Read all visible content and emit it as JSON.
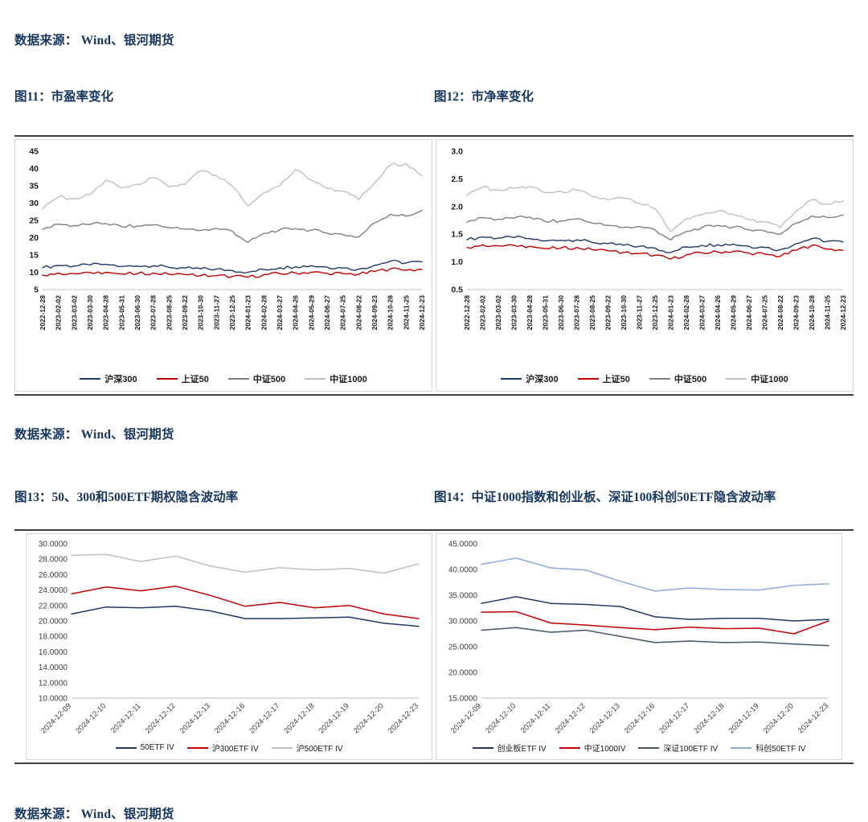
{
  "page": {
    "background": "#ffffff",
    "text_color": "#17365D"
  },
  "sources": [
    "数据来源： Wind、银河期货",
    "数据来源： Wind、银河期货",
    "数据来源： Wind、银河期货"
  ],
  "figures": [
    {
      "title": "图11：市盈率变化"
    },
    {
      "title": "图12：市净率变化"
    },
    {
      "title": "图13：50、300和500ETF期权隐含波动率"
    },
    {
      "title": "图14：中证1000指数和创业板、深证100科创50ETF隐含波动率"
    }
  ],
  "chart_data": [
    {
      "type": "line",
      "title": "图11：市盈率变化",
      "xlabel": "",
      "ylabel": "",
      "grid": false,
      "legend_position": "bottom",
      "ylim": [
        5,
        45
      ],
      "yticks": [
        "5",
        "10",
        "15",
        "20",
        "25",
        "30",
        "35",
        "40",
        "45"
      ],
      "categories": [
        "2022-12-28",
        "2023-02-02",
        "2023-03-02",
        "2023-03-30",
        "2023-04-28",
        "2023-05-31",
        "2023-06-30",
        "2023-07-28",
        "2023-08-25",
        "2023-09-22",
        "2023-10-30",
        "2023-11-27",
        "2023-12-25",
        "2024-01-23",
        "2024-02-28",
        "2024-03-27",
        "2024-04-26",
        "2024-05-29",
        "2024-06-27",
        "2024-07-25",
        "2024-08-22",
        "2024-09-23",
        "2024-10-28",
        "2024-11-25",
        "2024-12-23"
      ],
      "series": [
        {
          "name": "沪深300",
          "color": "#1F3864",
          "values": [
            11.3,
            12.0,
            11.8,
            12.1,
            12.3,
            11.7,
            11.8,
            11.9,
            11.4,
            11.2,
            11.0,
            10.9,
            10.5,
            10.0,
            10.8,
            11.3,
            11.6,
            11.9,
            11.5,
            11.2,
            10.9,
            12.0,
            13.2,
            12.7,
            13.0
          ]
        },
        {
          "name": "上证50",
          "color": "#C00000",
          "values": [
            9.2,
            9.8,
            9.6,
            9.9,
            10.0,
            9.5,
            9.6,
            9.8,
            9.4,
            9.3,
            9.1,
            9.0,
            8.8,
            8.6,
            9.3,
            9.6,
            9.8,
            10.0,
            9.7,
            9.6,
            9.4,
            10.2,
            11.0,
            10.6,
            10.8
          ]
        },
        {
          "name": "中证500",
          "color": "#7F7F7F",
          "values": [
            22.4,
            23.9,
            23.5,
            23.8,
            24.1,
            23.2,
            23.4,
            23.7,
            22.9,
            22.5,
            22.1,
            22.7,
            21.9,
            18.6,
            21.2,
            22.3,
            22.6,
            22.2,
            21.3,
            20.9,
            20.2,
            24.3,
            26.8,
            26.2,
            27.9
          ]
        },
        {
          "name": "中证1000",
          "color": "#BFBFBF",
          "values": [
            28.3,
            31.8,
            31.3,
            32.4,
            36.6,
            34.4,
            35.4,
            37.4,
            34.7,
            35.4,
            39.4,
            37.9,
            34.9,
            29.2,
            33.0,
            35.0,
            39.7,
            36.7,
            34.2,
            33.4,
            31.0,
            35.8,
            41.0,
            41.4,
            38.0
          ]
        }
      ]
    },
    {
      "type": "line",
      "title": "图12：市净率变化",
      "xlabel": "",
      "ylabel": "",
      "grid": false,
      "legend_position": "bottom",
      "ylim": [
        0.5,
        3.0
      ],
      "yticks": [
        "0.5",
        "1.0",
        "1.5",
        "2.0",
        "2.5",
        "3.0"
      ],
      "categories": [
        "2022-12-28",
        "2023-02-02",
        "2023-03-02",
        "2023-03-30",
        "2023-04-28",
        "2023-05-31",
        "2023-06-30",
        "2023-07-28",
        "2023-08-25",
        "2023-09-22",
        "2023-10-30",
        "2023-11-27",
        "2023-12-25",
        "2024-01-23",
        "2024-02-28",
        "2024-03-27",
        "2024-04-26",
        "2024-05-29",
        "2024-06-27",
        "2024-07-25",
        "2024-08-22",
        "2024-09-23",
        "2024-10-28",
        "2024-11-25",
        "2024-12-23"
      ],
      "series": [
        {
          "name": "沪深300",
          "color": "#1F3864",
          "values": [
            1.4,
            1.45,
            1.43,
            1.44,
            1.42,
            1.38,
            1.39,
            1.4,
            1.35,
            1.33,
            1.3,
            1.28,
            1.25,
            1.17,
            1.27,
            1.3,
            1.31,
            1.32,
            1.28,
            1.26,
            1.22,
            1.33,
            1.42,
            1.37,
            1.36
          ]
        },
        {
          "name": "上证50",
          "color": "#C00000",
          "values": [
            1.26,
            1.31,
            1.29,
            1.3,
            1.28,
            1.24,
            1.25,
            1.26,
            1.22,
            1.2,
            1.17,
            1.15,
            1.12,
            1.05,
            1.13,
            1.16,
            1.18,
            1.19,
            1.16,
            1.14,
            1.1,
            1.21,
            1.3,
            1.23,
            1.21
          ]
        },
        {
          "name": "中证500",
          "color": "#7F7F7F",
          "values": [
            1.72,
            1.8,
            1.77,
            1.79,
            1.81,
            1.73,
            1.74,
            1.78,
            1.7,
            1.66,
            1.62,
            1.64,
            1.58,
            1.4,
            1.55,
            1.62,
            1.66,
            1.63,
            1.58,
            1.56,
            1.5,
            1.7,
            1.83,
            1.8,
            1.85
          ]
        },
        {
          "name": "中证1000",
          "color": "#BFBFBF",
          "values": [
            2.2,
            2.35,
            2.3,
            2.33,
            2.36,
            2.25,
            2.27,
            2.3,
            2.18,
            2.12,
            2.15,
            2.06,
            1.96,
            1.55,
            1.78,
            1.85,
            1.92,
            1.86,
            1.76,
            1.72,
            1.62,
            1.92,
            2.12,
            2.05,
            2.1
          ]
        }
      ]
    },
    {
      "type": "line",
      "title": "图13：50、300和500ETF期权隐含波动率",
      "xlabel": "",
      "ylabel": "",
      "grid": false,
      "legend_position": "bottom",
      "ylim": [
        10,
        30
      ],
      "yticks": [
        "10.0000",
        "12.0000",
        "14.0000",
        "16.0000",
        "18.0000",
        "20.0000",
        "22.0000",
        "24.0000",
        "26.0000",
        "28.0000",
        "30.0000"
      ],
      "categories": [
        "2024-12-09",
        "2024-12-10",
        "2024-12-11",
        "2024-12-12",
        "2024-12-13",
        "2024-12-16",
        "2024-12-17",
        "2024-12-18",
        "2024-12-19",
        "2024-12-20",
        "2024-12-23"
      ],
      "series": [
        {
          "name": "50ETF IV",
          "color": "#1F3864",
          "values": [
            20.9,
            21.8,
            21.7,
            21.9,
            21.3,
            20.3,
            20.3,
            20.4,
            20.5,
            19.7,
            19.3
          ]
        },
        {
          "name": "沪300ETF IV",
          "color": "#C00000",
          "values": [
            23.5,
            24.4,
            23.9,
            24.5,
            23.3,
            21.9,
            22.4,
            21.7,
            22.0,
            20.9,
            20.3
          ]
        },
        {
          "name": "沪500ETF IV",
          "color": "#BFBFBF",
          "values": [
            28.5,
            28.6,
            27.7,
            28.4,
            27.1,
            26.3,
            26.9,
            26.6,
            26.8,
            26.2,
            27.4
          ]
        }
      ]
    },
    {
      "type": "line",
      "title": "图14：中证1000指数和创业板、深证100科创50ETF隐含波动率",
      "xlabel": "",
      "ylabel": "",
      "grid": false,
      "legend_position": "bottom",
      "ylim": [
        15,
        45
      ],
      "yticks": [
        "15.0000",
        "20.0000",
        "25.0000",
        "30.0000",
        "35.0000",
        "40.0000",
        "45.0000"
      ],
      "categories": [
        "2024-12-09",
        "2024-12-10",
        "2024-12-11",
        "2024-12-12",
        "2024-12-13",
        "2024-12-16",
        "2024-12-17",
        "2024-12-18",
        "2024-12-19",
        "2024-12-20",
        "2024-12-23"
      ],
      "series": [
        {
          "name": "创业板ETF IV",
          "color": "#1F3864",
          "values": [
            33.4,
            34.7,
            33.4,
            33.2,
            32.8,
            30.8,
            30.3,
            30.5,
            30.5,
            30.0,
            30.3
          ]
        },
        {
          "name": "中证1000IV",
          "color": "#C00000",
          "values": [
            31.7,
            31.8,
            29.6,
            29.2,
            28.7,
            28.3,
            28.8,
            28.5,
            28.6,
            27.5,
            30.0
          ]
        },
        {
          "name": "深证100ETF IV",
          "color": "#44546A",
          "values": [
            28.2,
            28.7,
            27.8,
            28.2,
            27.0,
            25.8,
            26.1,
            25.8,
            25.9,
            25.5,
            25.2
          ]
        },
        {
          "name": "科创50ETF IV",
          "color": "#8FAADC",
          "values": [
            41.0,
            42.2,
            40.3,
            39.9,
            37.7,
            35.8,
            36.4,
            36.1,
            36.0,
            36.9,
            37.2
          ]
        }
      ]
    }
  ]
}
